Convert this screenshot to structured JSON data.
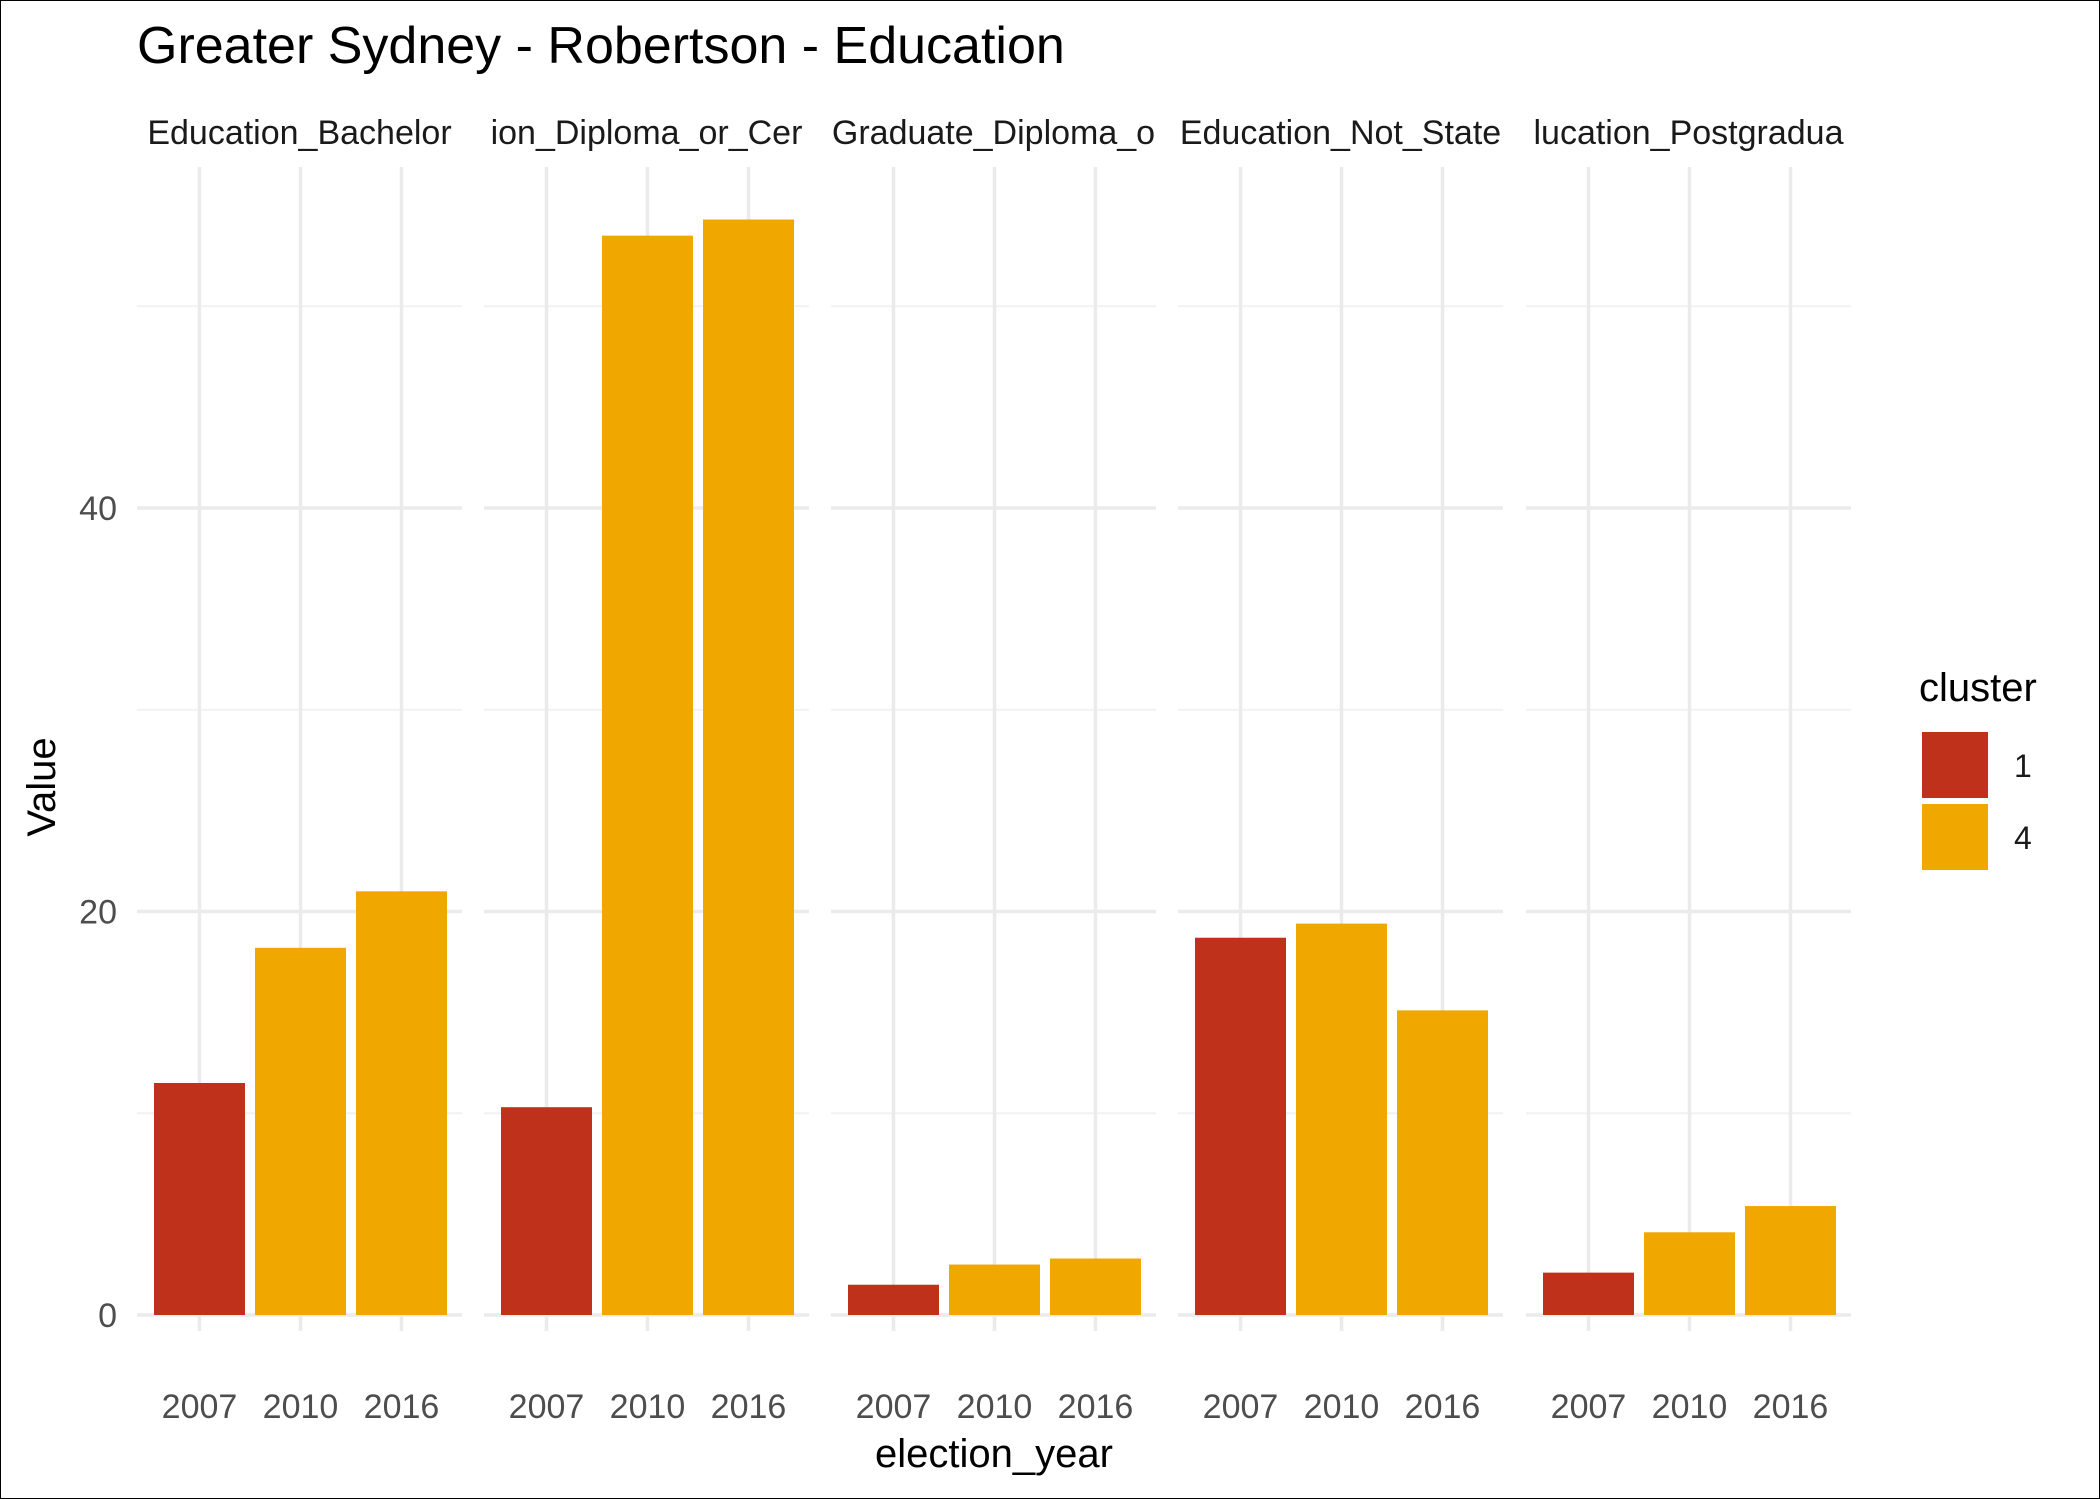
{
  "chart_data": {
    "type": "bar",
    "title": "Greater Sydney - Robertson - Education",
    "xlabel": "election_year",
    "ylabel": "Value",
    "ylim": [
      0,
      57
    ],
    "y_ticks": [
      "0",
      "20",
      "40"
    ],
    "grid": true,
    "legend": {
      "title": "cluster",
      "placement": "right",
      "entries": [
        {
          "label": "1",
          "color": "#C0311B"
        },
        {
          "label": "4",
          "color": "#F0A800"
        }
      ]
    },
    "categories": [
      "2007",
      "2010",
      "2016"
    ],
    "cluster_by_year": [
      "1",
      "4",
      "4"
    ],
    "panels": [
      {
        "label": "Education_Bachelor",
        "values": [
          11.5,
          18.2,
          21.0
        ]
      },
      {
        "label": "ion_Diploma_or_Cer",
        "values": [
          10.3,
          53.5,
          54.3
        ]
      },
      {
        "label": "Graduate_Diploma_o",
        "values": [
          1.5,
          2.5,
          2.8
        ]
      },
      {
        "label": "Education_Not_State",
        "values": [
          18.7,
          19.4,
          15.1
        ]
      },
      {
        "label": "lucation_Postgradua",
        "values": [
          2.1,
          4.1,
          5.4
        ]
      }
    ]
  }
}
